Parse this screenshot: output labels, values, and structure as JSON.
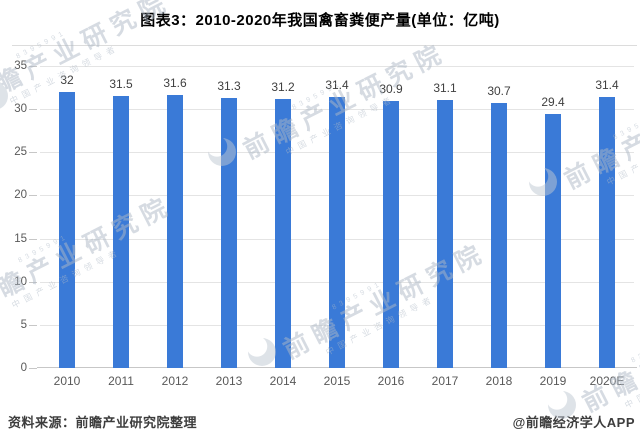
{
  "title": "图表3：2010-2020年我国禽畜粪便产量(单位：亿吨)",
  "chart_data": {
    "type": "bar",
    "title": "图表3：2010-2020年我国禽畜粪便产量(单位：亿吨)",
    "unit": "亿吨",
    "categories": [
      "2010",
      "2011",
      "2012",
      "2013",
      "2014",
      "2015",
      "2016",
      "2017",
      "2018",
      "2019",
      "2020E"
    ],
    "values": [
      32,
      31.5,
      31.6,
      31.3,
      31.2,
      31.4,
      30.9,
      31.1,
      30.7,
      29.4,
      31.4
    ],
    "xlabel": "",
    "ylabel": "",
    "ylim": [
      0,
      35
    ],
    "y_ticks": [
      0,
      5,
      10,
      15,
      20,
      25,
      30,
      35
    ],
    "grid": true,
    "legend": "none",
    "bar_color": "#3a7ad7",
    "gridline_color": "#e4e4e4",
    "axis_color": "#c7c7c7",
    "label_color": "#3f3f3f",
    "tick_label_color": "#595959"
  },
  "footer": {
    "source": "资料来源：前瞻产业研究院整理",
    "credit": "@前瞻经济学人APP"
  },
  "watermark": {
    "text": "前瞻产业研究院",
    "subtext": "中国产业咨询领导者",
    "digits": "8395991"
  }
}
